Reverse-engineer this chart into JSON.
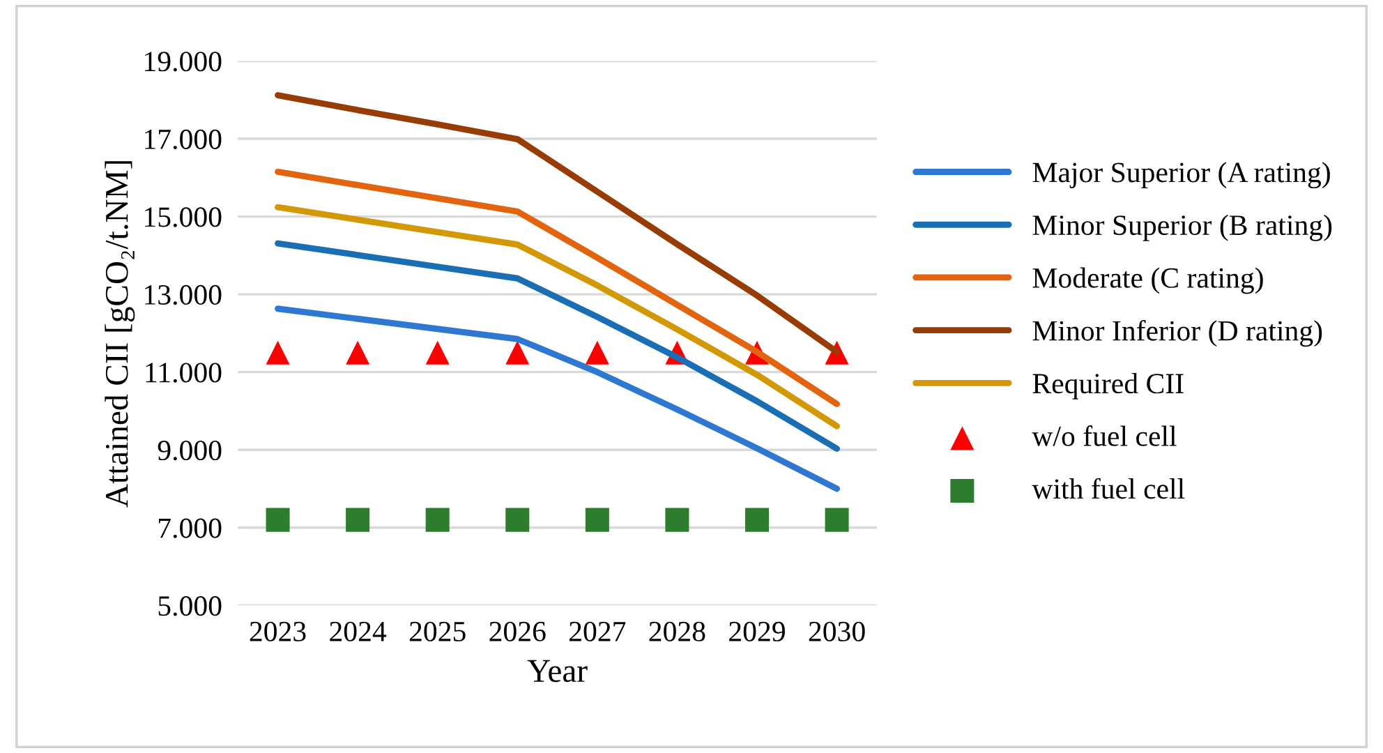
{
  "chart_data": {
    "type": "line",
    "xlabel": "Year",
    "ylabel": "Attained CII [gCO₂/t.NM]",
    "categories": [
      "2023",
      "2024",
      "2025",
      "2026",
      "2027",
      "2028",
      "2029",
      "2030"
    ],
    "series": [
      {
        "name": "Major Superior (A rating)",
        "color": "#2e78d2",
        "values": [
          12.63,
          12.37,
          12.11,
          11.85,
          11.0,
          10.04,
          9.04,
          8.0
        ]
      },
      {
        "name": "Minor Superior (B rating)",
        "color": "#1a6fb4",
        "values": [
          14.31,
          14.01,
          13.71,
          13.41,
          12.42,
          11.38,
          10.25,
          9.03
        ]
      },
      {
        "name": "Moderate (C rating)",
        "color": "#e2640f",
        "values": [
          16.15,
          15.81,
          15.47,
          15.13,
          13.94,
          12.73,
          11.52,
          10.18
        ]
      },
      {
        "name": "Minor Inferior (D rating)",
        "color": "#973c05",
        "values": [
          18.12,
          17.74,
          17.37,
          16.99,
          15.64,
          14.29,
          12.97,
          11.52
        ]
      },
      {
        "name": "Required CII",
        "color": "#d39806",
        "values": [
          15.24,
          14.92,
          14.6,
          14.28,
          13.23,
          12.1,
          10.93,
          9.61
        ]
      },
      {
        "name": "w/o fuel cell",
        "type": "scatter",
        "marker": "triangle",
        "color": "#ff0000",
        "values": [
          11.5,
          11.5,
          11.5,
          11.5,
          11.5,
          11.5,
          11.5,
          11.5
        ]
      },
      {
        "name": "with fuel cell",
        "type": "scatter",
        "marker": "square",
        "color": "#2e7d2e",
        "values": [
          7.2,
          7.2,
          7.2,
          7.2,
          7.2,
          7.2,
          7.2,
          7.2
        ]
      }
    ],
    "ylim": [
      5,
      19
    ],
    "yticks": [
      {
        "value": 5,
        "label": "5.000"
      },
      {
        "value": 7,
        "label": "7.000"
      },
      {
        "value": 9,
        "label": "9.000"
      },
      {
        "value": 11,
        "label": "11.000"
      },
      {
        "value": 13,
        "label": "13.000"
      },
      {
        "value": 15,
        "label": "15.000"
      },
      {
        "value": 17,
        "label": "17.000"
      },
      {
        "value": 19,
        "label": "19.000"
      }
    ],
    "grid": "y",
    "legend": "right",
    "marker": "none",
    "line_style": "solid"
  }
}
